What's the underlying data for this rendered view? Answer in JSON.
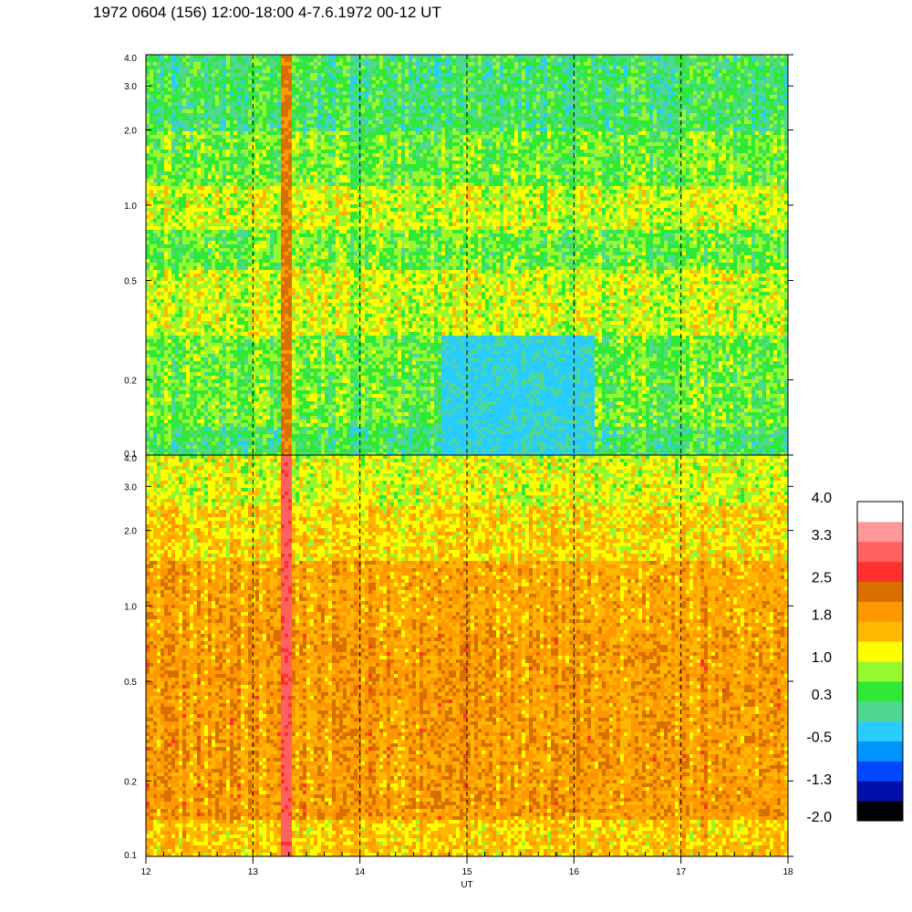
{
  "title": "1972 0604 (156) 12:00-18:00 4-7.6.1972  00-12 UT",
  "colors": {
    "scale": [
      "#000000",
      "#0010a8",
      "#0048ff",
      "#0094ff",
      "#28ccff",
      "#50d890",
      "#30e838",
      "#98f830",
      "#ffff00",
      "#ffb800",
      "#ff9800",
      "#d87000",
      "#ff3030",
      "#ff6060",
      "#ff9898",
      "#ffffff"
    ]
  },
  "chart_data": [
    {
      "type": "heatmap",
      "panel": "upper",
      "xlabel": "",
      "x_range": [
        12,
        18
      ],
      "y_scale": "log",
      "y_range": [
        0.1,
        4.0
      ],
      "y_ticks": [
        "0.1",
        "0.2",
        "0.5",
        "1.0",
        "2.0",
        "3.0",
        "4.0"
      ],
      "y_tick_values": [
        0.1,
        0.2,
        0.5,
        1.0,
        2.0,
        3.0,
        4.0
      ],
      "dashed_verticals": [
        13,
        14,
        15,
        16,
        17
      ],
      "bands": [
        {
          "y_from": 0.1,
          "y_to": 0.13,
          "level": 0.3
        },
        {
          "y_from": 0.13,
          "y_to": 0.3,
          "level": 0.6
        },
        {
          "y_from": 0.3,
          "y_to": 0.55,
          "level": 1.0
        },
        {
          "y_from": 0.55,
          "y_to": 0.8,
          "level": 0.6
        },
        {
          "y_from": 0.8,
          "y_to": 1.2,
          "level": 1.0
        },
        {
          "y_from": 1.2,
          "y_to": 2.0,
          "level": 0.6
        },
        {
          "y_from": 2.0,
          "y_to": 4.0,
          "level": 0.3
        }
      ],
      "features": [
        {
          "x_from": 13.25,
          "x_to": 13.35,
          "level": 2.2,
          "note": "burst"
        },
        {
          "x_from": 14.75,
          "x_to": 16.2,
          "y_from": 0.1,
          "y_to": 0.3,
          "level": -0.2
        }
      ]
    },
    {
      "type": "heatmap",
      "panel": "lower",
      "xlabel": "UT",
      "x_range": [
        12,
        18
      ],
      "x_ticks": [
        "12",
        "13",
        "14",
        "15",
        "16",
        "17",
        "18"
      ],
      "x_tick_values": [
        12,
        13,
        14,
        15,
        16,
        17,
        18
      ],
      "y_scale": "log",
      "y_range": [
        0.1,
        4.0
      ],
      "y_ticks": [
        "0.1",
        "0.2",
        "0.5",
        "1.0",
        "2.0",
        "3.0",
        "4.0"
      ],
      "y_tick_values": [
        0.1,
        0.2,
        0.5,
        1.0,
        2.0,
        3.0,
        4.0
      ],
      "dashed_verticals": [
        13,
        14,
        15,
        16,
        17
      ],
      "bands": [
        {
          "y_from": 0.1,
          "y_to": 0.14,
          "level": 1.5
        },
        {
          "y_from": 0.14,
          "y_to": 0.8,
          "level": 1.9
        },
        {
          "y_from": 0.8,
          "y_to": 1.5,
          "level": 1.8
        },
        {
          "y_from": 1.5,
          "y_to": 2.5,
          "level": 1.4
        },
        {
          "y_from": 2.5,
          "y_to": 4.0,
          "level": 1.1
        }
      ],
      "features": [
        {
          "x_from": 13.25,
          "x_to": 13.35,
          "level": 3.0,
          "note": "burst"
        }
      ]
    },
    {
      "type": "colorbar",
      "labels": [
        "4.0",
        "3.3",
        "2.5",
        "1.8",
        "1.0",
        "0.3",
        "-0.5",
        "-1.3",
        "-2.0"
      ],
      "values": [
        4.0,
        3.3,
        2.5,
        1.8,
        1.0,
        0.3,
        -0.5,
        -1.3,
        -2.0
      ],
      "range": [
        -2.0,
        4.0
      ],
      "n_colors": 16
    }
  ]
}
